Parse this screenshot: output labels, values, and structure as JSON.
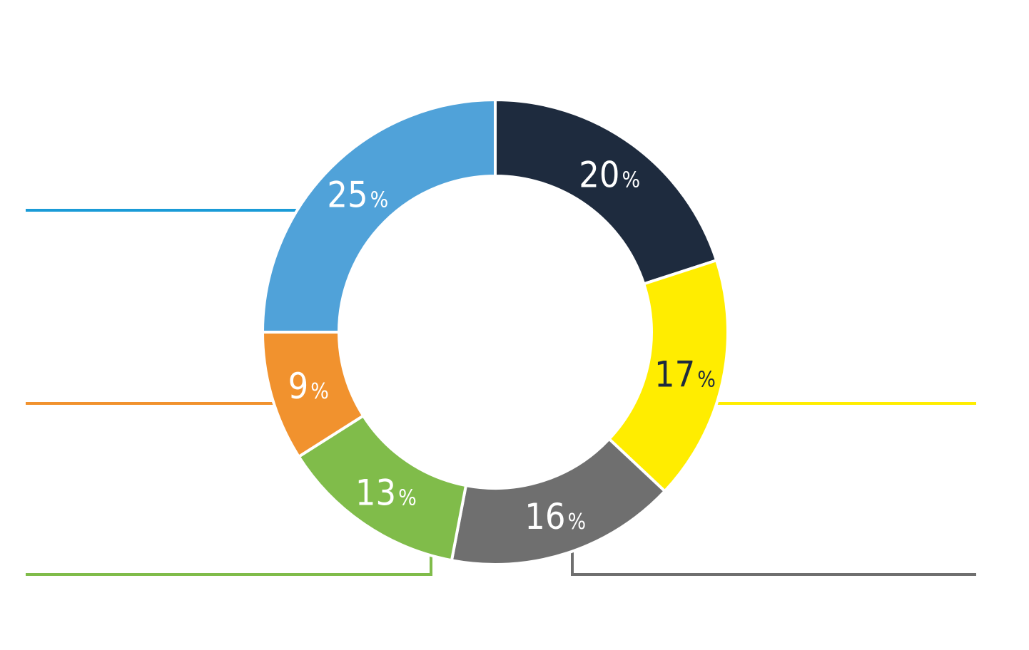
{
  "chart_data": {
    "type": "pie",
    "style": "donut",
    "series": [
      {
        "value": 20,
        "label_num": "20",
        "label_unit": "%",
        "color": "#1e2b3e",
        "label_color": "#ffffff"
      },
      {
        "value": 17,
        "label_num": "17",
        "label_unit": "%",
        "color": "#ffed00",
        "label_color": "#1e2b3e"
      },
      {
        "value": 16,
        "label_num": "16",
        "label_unit": "%",
        "color": "#6f6f6f",
        "label_color": "#ffffff"
      },
      {
        "value": 13,
        "label_num": "13",
        "label_unit": "%",
        "color": "#80bc4a",
        "label_color": "#ffffff"
      },
      {
        "value": 9,
        "label_num": "9",
        "label_unit": "%",
        "color": "#f1922e",
        "label_color": "#ffffff"
      },
      {
        "value": 25,
        "label_num": "25",
        "label_unit": "%",
        "color": "#50a2d9",
        "label_color": "#ffffff"
      }
    ],
    "leader_line_colors": [
      "#1a9bd7",
      "#f1922e",
      "#80bc4a",
      "#6f6f6f",
      "#ffed00"
    ],
    "legend": "none",
    "title": ""
  }
}
